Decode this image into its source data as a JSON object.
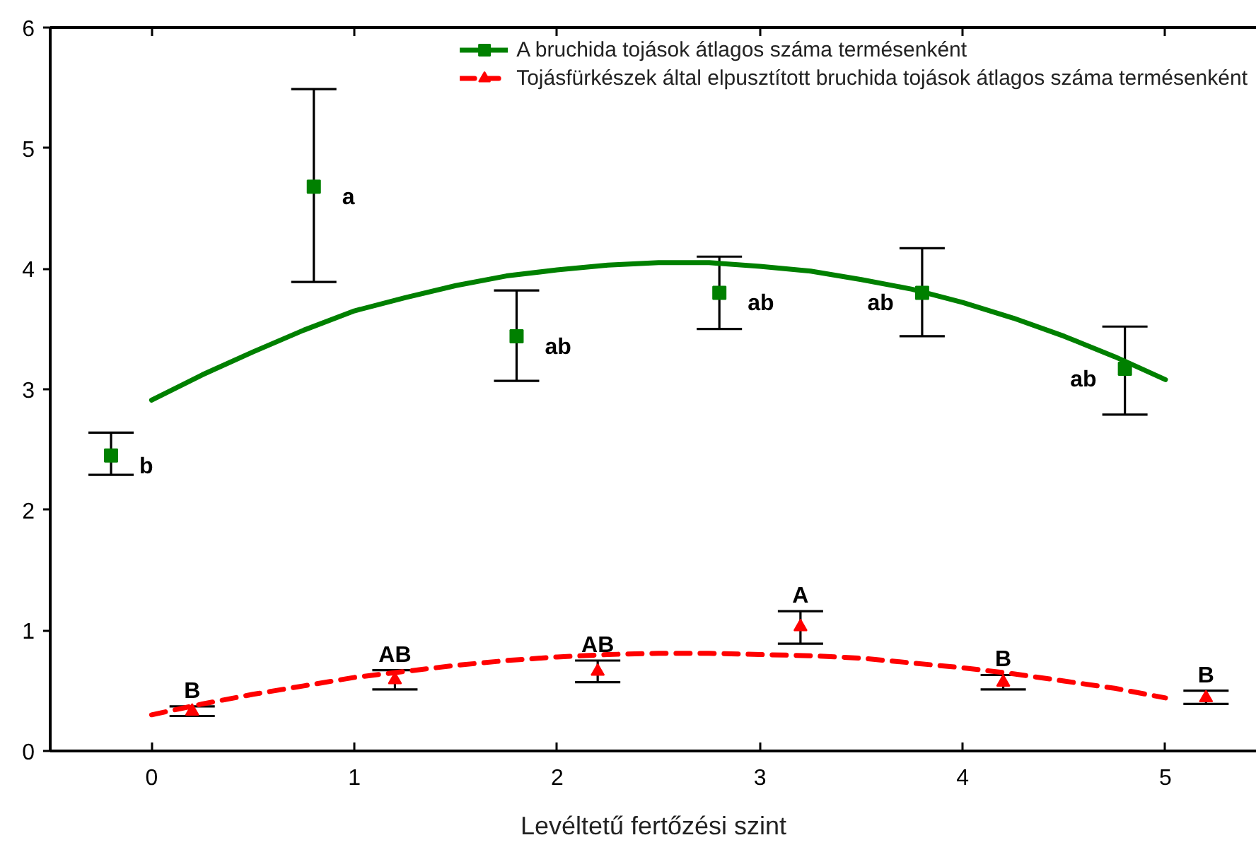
{
  "chart_data": {
    "type": "scatter",
    "xlabel": "Levéltetű fertőzési szint",
    "xlim": [
      -0.5,
      5.45
    ],
    "xticks": [
      0,
      1,
      2,
      3,
      4,
      5
    ],
    "ylim": [
      0,
      6
    ],
    "yticks": [
      0,
      1,
      2,
      3,
      4,
      5,
      6
    ],
    "grid": false,
    "legend": "top right",
    "series": [
      {
        "name": "A bruchida tojások átlagos száma termésenként",
        "color": "#008000",
        "marker": "square",
        "x": [
          -0.2,
          0.8,
          1.8,
          2.8,
          3.8,
          4.8
        ],
        "values": [
          2.45,
          4.68,
          3.44,
          3.8,
          3.8,
          3.17
        ],
        "errors": [
          [
            2.29,
            2.64
          ],
          [
            3.89,
            5.49
          ],
          [
            3.07,
            3.82
          ],
          [
            3.5,
            4.1
          ],
          [
            3.44,
            4.17
          ],
          [
            2.79,
            3.52
          ]
        ],
        "value_labels": [
          "b",
          "a",
          "ab",
          "ab",
          "ab",
          "ab"
        ]
      },
      {
        "name": "Tojásfürkészek által elpusztított bruchida tojások átlagos száma termésenként",
        "color": "#ff0000",
        "marker": "triangle",
        "x": [
          0.2,
          1.2,
          2.2,
          3.2,
          4.2,
          5.2
        ],
        "values": [
          0.33,
          0.59,
          0.66,
          1.03,
          0.57,
          0.44
        ],
        "errors": [
          [
            0.29,
            0.37
          ],
          [
            0.51,
            0.67
          ],
          [
            0.57,
            0.75
          ],
          [
            0.89,
            1.16
          ],
          [
            0.51,
            0.63
          ],
          [
            0.39,
            0.5
          ]
        ],
        "value_labels": [
          "B",
          "AB",
          "AB",
          "A",
          "B",
          "B"
        ]
      },
      {
        "type": "line",
        "color": "#008000",
        "line_style": "solid",
        "x": [
          0,
          0.25,
          0.5,
          0.75,
          1,
          1.25,
          1.5,
          1.75,
          2,
          2.25,
          2.5,
          2.75,
          3,
          3.25,
          3.5,
          3.75,
          4,
          4.25,
          4.5,
          4.75,
          5
        ],
        "values": [
          2.91,
          3.12,
          3.31,
          3.49,
          3.65,
          3.76,
          3.86,
          3.94,
          3.99,
          4.03,
          4.05,
          4.05,
          4.02,
          3.98,
          3.91,
          3.83,
          3.72,
          3.59,
          3.44,
          3.27,
          3.08
        ]
      },
      {
        "type": "line",
        "color": "#ff0000",
        "line_style": "dashed",
        "x": [
          0,
          0.25,
          0.5,
          0.75,
          1,
          1.25,
          1.5,
          1.75,
          2,
          2.25,
          2.5,
          2.75,
          3,
          3.25,
          3.5,
          3.75,
          4,
          4.25,
          4.5,
          4.75,
          5
        ],
        "values": [
          0.3,
          0.39,
          0.47,
          0.54,
          0.61,
          0.66,
          0.71,
          0.75,
          0.78,
          0.8,
          0.81,
          0.81,
          0.8,
          0.79,
          0.77,
          0.73,
          0.69,
          0.64,
          0.58,
          0.52,
          0.44
        ]
      }
    ]
  }
}
